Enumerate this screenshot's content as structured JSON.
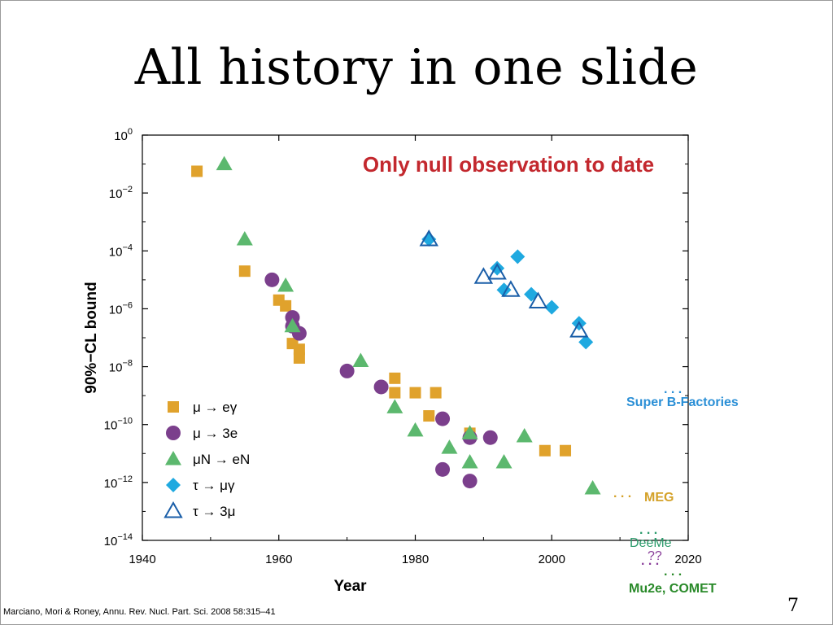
{
  "slide": {
    "title": "All history in one slide",
    "citation": "Marciano, Mori & Roney, Annu. Rev. Nucl. Part. Sci. 2008 58:315–41",
    "page_number": "7"
  },
  "colors": {
    "mu_egamma": "#e0a22c",
    "mu_3e": "#7b3f8c",
    "muN_eN": "#5cb86e",
    "tau_mugamma": "#1fa9e0",
    "tau_3mu": "#1a5ea8",
    "annotation": "#c3282e",
    "super_b": "#2a8fd6",
    "meg": "#d4a128",
    "deeme": "#2a9a6a",
    "mu2e": "#2a8a2a",
    "question": "#8a3f9a"
  },
  "chart_data": {
    "type": "scatter",
    "xlabel": "Year",
    "ylabel": "90%−CL bound",
    "xlim": [
      1940,
      2020
    ],
    "ylim_exponent": [
      -14,
      0
    ],
    "y_scale": "log",
    "x_ticks": [
      "1940",
      "1960",
      "1980",
      "2000",
      "2020"
    ],
    "y_ticks": [
      {
        "exp": 0,
        "label": "10",
        "sup": "0"
      },
      {
        "exp": -2,
        "label": "10",
        "sup": "−2"
      },
      {
        "exp": -4,
        "label": "10",
        "sup": "−4"
      },
      {
        "exp": -6,
        "label": "10",
        "sup": "−6"
      },
      {
        "exp": -8,
        "label": "10",
        "sup": "−8"
      },
      {
        "exp": -10,
        "label": "10",
        "sup": "−10"
      },
      {
        "exp": -12,
        "label": "10",
        "sup": "−12"
      },
      {
        "exp": -14,
        "label": "10",
        "sup": "−14"
      }
    ],
    "annotation": "Only null observation to date",
    "legend_position": "bottom-left",
    "series": [
      {
        "name": "μ → eγ",
        "marker": "square",
        "color_key": "mu_egamma",
        "points": [
          [
            1948,
            -1.25
          ],
          [
            1955,
            -4.7
          ],
          [
            1960,
            -5.7
          ],
          [
            1961,
            -5.9
          ],
          [
            1962,
            -7.2
          ],
          [
            1963,
            -7.4
          ],
          [
            1963,
            -7.7
          ],
          [
            1977,
            -8.4
          ],
          [
            1977,
            -8.9
          ],
          [
            1980,
            -8.9
          ],
          [
            1983,
            -8.9
          ],
          [
            1982,
            -9.7
          ],
          [
            1988,
            -10.3
          ],
          [
            1999,
            -10.9
          ],
          [
            2002,
            -10.9
          ]
        ]
      },
      {
        "name": "μ → 3e",
        "marker": "circle",
        "color_key": "mu_3e",
        "points": [
          [
            1959,
            -5.0
          ],
          [
            1962,
            -6.3
          ],
          [
            1962,
            -6.6
          ],
          [
            1963,
            -6.85
          ],
          [
            1970,
            -8.15
          ],
          [
            1975,
            -8.7
          ],
          [
            1984,
            -9.8
          ],
          [
            1984,
            -11.55
          ],
          [
            1988,
            -10.45
          ],
          [
            1988,
            -11.95
          ],
          [
            1991,
            -10.45
          ]
        ]
      },
      {
        "name": "μN → eN",
        "marker": "triangle",
        "color_key": "muN_eN",
        "points": [
          [
            1952,
            -1.0
          ],
          [
            1955,
            -3.6
          ],
          [
            1961,
            -5.2
          ],
          [
            1962,
            -6.6
          ],
          [
            1972,
            -7.8
          ],
          [
            1977,
            -9.4
          ],
          [
            1980,
            -10.2
          ],
          [
            1985,
            -10.8
          ],
          [
            1988,
            -10.3
          ],
          [
            1988,
            -11.3
          ],
          [
            1993,
            -11.3
          ],
          [
            1996,
            -10.4
          ],
          [
            2006,
            -12.2
          ]
        ]
      },
      {
        "name": "τ → μγ",
        "marker": "diamond",
        "color_key": "tau_mugamma",
        "points": [
          [
            1982,
            -3.6
          ],
          [
            1992,
            -4.6
          ],
          [
            1995,
            -4.2
          ],
          [
            1993,
            -5.35
          ],
          [
            1997,
            -5.5
          ],
          [
            2000,
            -5.95
          ],
          [
            2004,
            -6.5
          ],
          [
            2005,
            -7.15
          ]
        ]
      },
      {
        "name": "τ → 3μ",
        "marker": "open-triangle",
        "color_key": "tau_3mu",
        "points": [
          [
            1982,
            -3.6
          ],
          [
            1990,
            -4.9
          ],
          [
            1992,
            -4.75
          ],
          [
            1994,
            -5.35
          ],
          [
            1998,
            -5.75
          ],
          [
            2004,
            -6.75
          ]
        ]
      }
    ],
    "projections": [
      {
        "label": "Super B-Factories",
        "color_key": "super_b",
        "year": 2008.2,
        "exp": -8.8
      },
      {
        "label": "MEG",
        "color_key": "meg",
        "year": 2008.2,
        "exp": -12.5
      },
      {
        "label": "DeeMe",
        "color_key": "deeme",
        "year": 2008.2,
        "exp": -13.85
      },
      {
        "label": "??",
        "color_key": "question",
        "year": 2008.2,
        "exp": -14.7
      },
      {
        "label": "Mu2e, COMET",
        "color_key": "mu2e",
        "year": 2008.2,
        "exp": -15.1
      }
    ]
  }
}
